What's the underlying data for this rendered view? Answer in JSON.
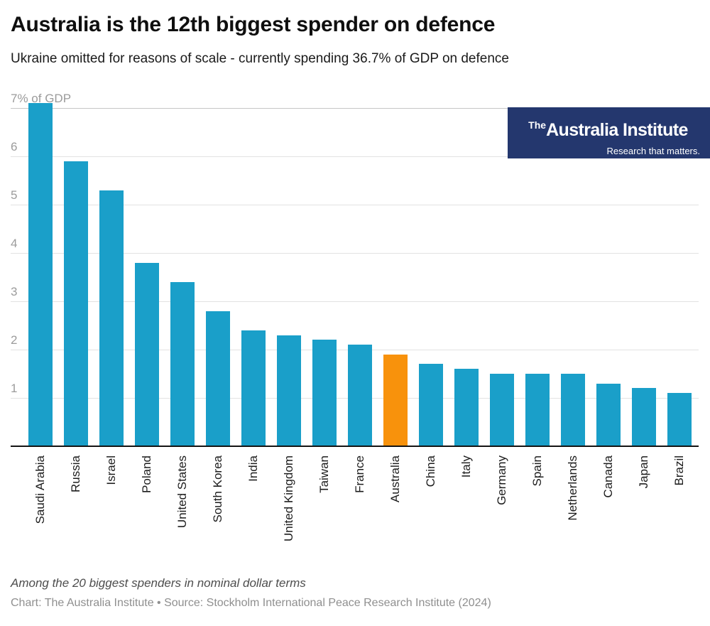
{
  "header": {
    "title": "Australia is the 12th biggest spender on defence",
    "subtitle": "Ukraine omitted for reasons of scale - currently spending 36.7% of GDP on defence"
  },
  "logo": {
    "prefix": "The",
    "name": "Australia Institute",
    "tagline": "Research that matters.",
    "background_color": "#24376E",
    "text_color": "#ffffff"
  },
  "chart_data": {
    "type": "bar",
    "unit": "% of GDP",
    "categories": [
      "Saudi Arabia",
      "Russia",
      "Israel",
      "Poland",
      "United States",
      "South Korea",
      "India",
      "United Kingdom",
      "Taiwan",
      "France",
      "Australia",
      "China",
      "Italy",
      "Germany",
      "Spain",
      "Netherlands",
      "Canada",
      "Japan",
      "Brazil"
    ],
    "values": [
      7.1,
      5.9,
      5.3,
      3.8,
      3.4,
      2.8,
      2.4,
      2.3,
      2.2,
      2.1,
      1.9,
      1.7,
      1.6,
      1.5,
      1.5,
      1.5,
      1.3,
      1.2,
      1.1
    ],
    "highlight_category": "Australia",
    "bar_color": "#1A9FC9",
    "highlight_color": "#F8920C",
    "grid": true,
    "legend": "none",
    "ylim": [
      0,
      7.3
    ],
    "yticks": [
      {
        "value": 1,
        "label": "1"
      },
      {
        "value": 2,
        "label": "2"
      },
      {
        "value": 3,
        "label": "3"
      },
      {
        "value": 4,
        "label": "4"
      },
      {
        "value": 5,
        "label": "5"
      },
      {
        "value": 6,
        "label": "6"
      },
      {
        "value": 7,
        "label": "7% of GDP"
      }
    ]
  },
  "footer": {
    "note": "Among the 20 biggest spenders in nominal dollar terms",
    "credit": "Chart: The Australia Institute • Source: Stockholm International Peace Research Institute (2024)"
  }
}
